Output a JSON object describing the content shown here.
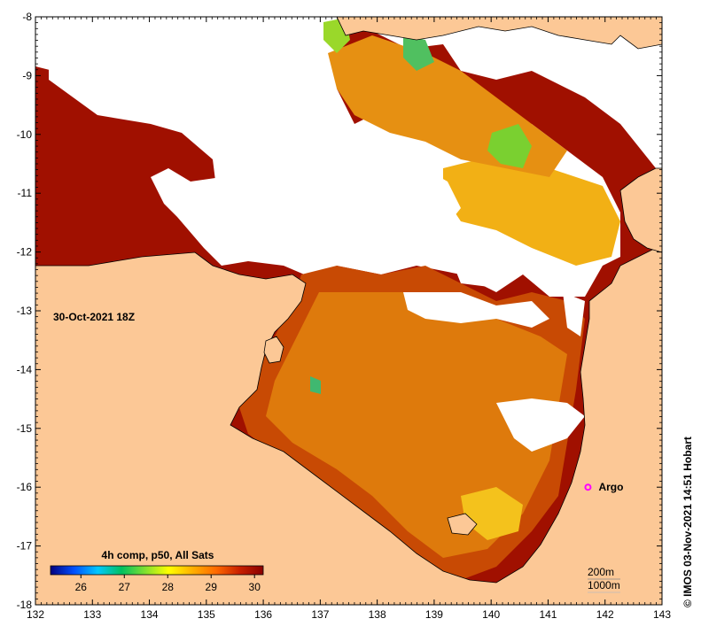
{
  "date_label": "30-Oct-2021 18Z",
  "colorbar": {
    "title": "4h comp, p50, All Sats",
    "ticks": [
      "26",
      "27",
      "28",
      "29",
      "30"
    ],
    "tick_values": [
      26,
      27,
      28,
      29,
      30
    ],
    "range": [
      25.3,
      30.2
    ],
    "stops": [
      "#000080",
      "#0050ff",
      "#00c8ff",
      "#00c060",
      "#7fe030",
      "#ffff00",
      "#ffb000",
      "#ff6a00",
      "#c82000",
      "#8a0000"
    ]
  },
  "axes": {
    "x_ticks": [
      "132",
      "133",
      "134",
      "135",
      "136",
      "137",
      "138",
      "139",
      "140",
      "141",
      "142",
      "143"
    ],
    "x_values": [
      132,
      133,
      134,
      135,
      136,
      137,
      138,
      139,
      140,
      141,
      142,
      143
    ],
    "y_ticks": [
      "-8",
      "-9",
      "-10",
      "-11",
      "-12",
      "-13",
      "-14",
      "-15",
      "-16",
      "-17",
      "-18"
    ],
    "y_values": [
      -8,
      -9,
      -10,
      -11,
      -12,
      -13,
      -14,
      -15,
      -16,
      -17,
      -18
    ],
    "lon_range": [
      132,
      143
    ],
    "lat_range": [
      -8,
      -18
    ]
  },
  "argo": {
    "label": "Argo",
    "lon": 141.7,
    "lat": -16.0,
    "color": "#ff00ff"
  },
  "contours": [
    "200m",
    "1000m"
  ],
  "credit": "© IMOS 03-Nov-2021 14:51 Hobart",
  "colors": {
    "land": "#fcc896",
    "cloud": "#ffffff",
    "sst_hot": "#a01000",
    "sst_warm": "#d86a08",
    "sst_mid": "#ec9810",
    "sst_cool": "#f8c818"
  }
}
